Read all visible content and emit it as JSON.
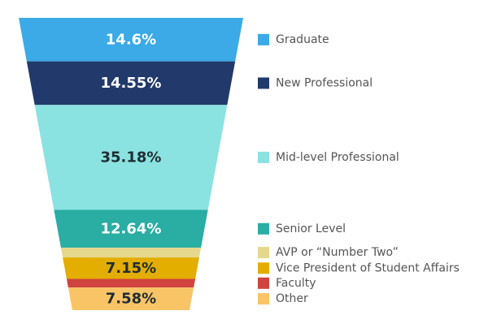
{
  "chart_data": {
    "type": "funnel",
    "title": "",
    "legend_position": "right",
    "series": [
      {
        "name": "Graduate",
        "value": 14.6,
        "label": "14.6%",
        "color": "#3BAAE6",
        "label_color": "#ffffff"
      },
      {
        "name": "New Professional",
        "value": 14.55,
        "label": "14.55%",
        "color": "#213A6B",
        "label_color": "#ffffff"
      },
      {
        "name": "Mid-level Professional",
        "value": 35.18,
        "label": "35.18%",
        "color": "#8AE2E1",
        "label_color": "#1f2d33"
      },
      {
        "name": "Senior Level",
        "value": 12.64,
        "label": "12.64%",
        "color": "#2AADA3",
        "label_color": "#ffffff"
      },
      {
        "name": "AVP or “Number Two”",
        "value": 3.3,
        "label": "",
        "color": "#E5D88D",
        "label_color": "#1f2d33"
      },
      {
        "name": "Vice President of Student Affairs",
        "value": 7.15,
        "label": "7.15%",
        "color": "#E3AE00",
        "label_color": "#1f2d33"
      },
      {
        "name": "Faculty",
        "value": 2.9,
        "label": "",
        "color": "#CF443F",
        "label_color": "#ffffff"
      },
      {
        "name": "Other",
        "value": 7.58,
        "label": "7.58%",
        "color": "#F9C466",
        "label_color": "#1f2d33"
      }
    ]
  }
}
